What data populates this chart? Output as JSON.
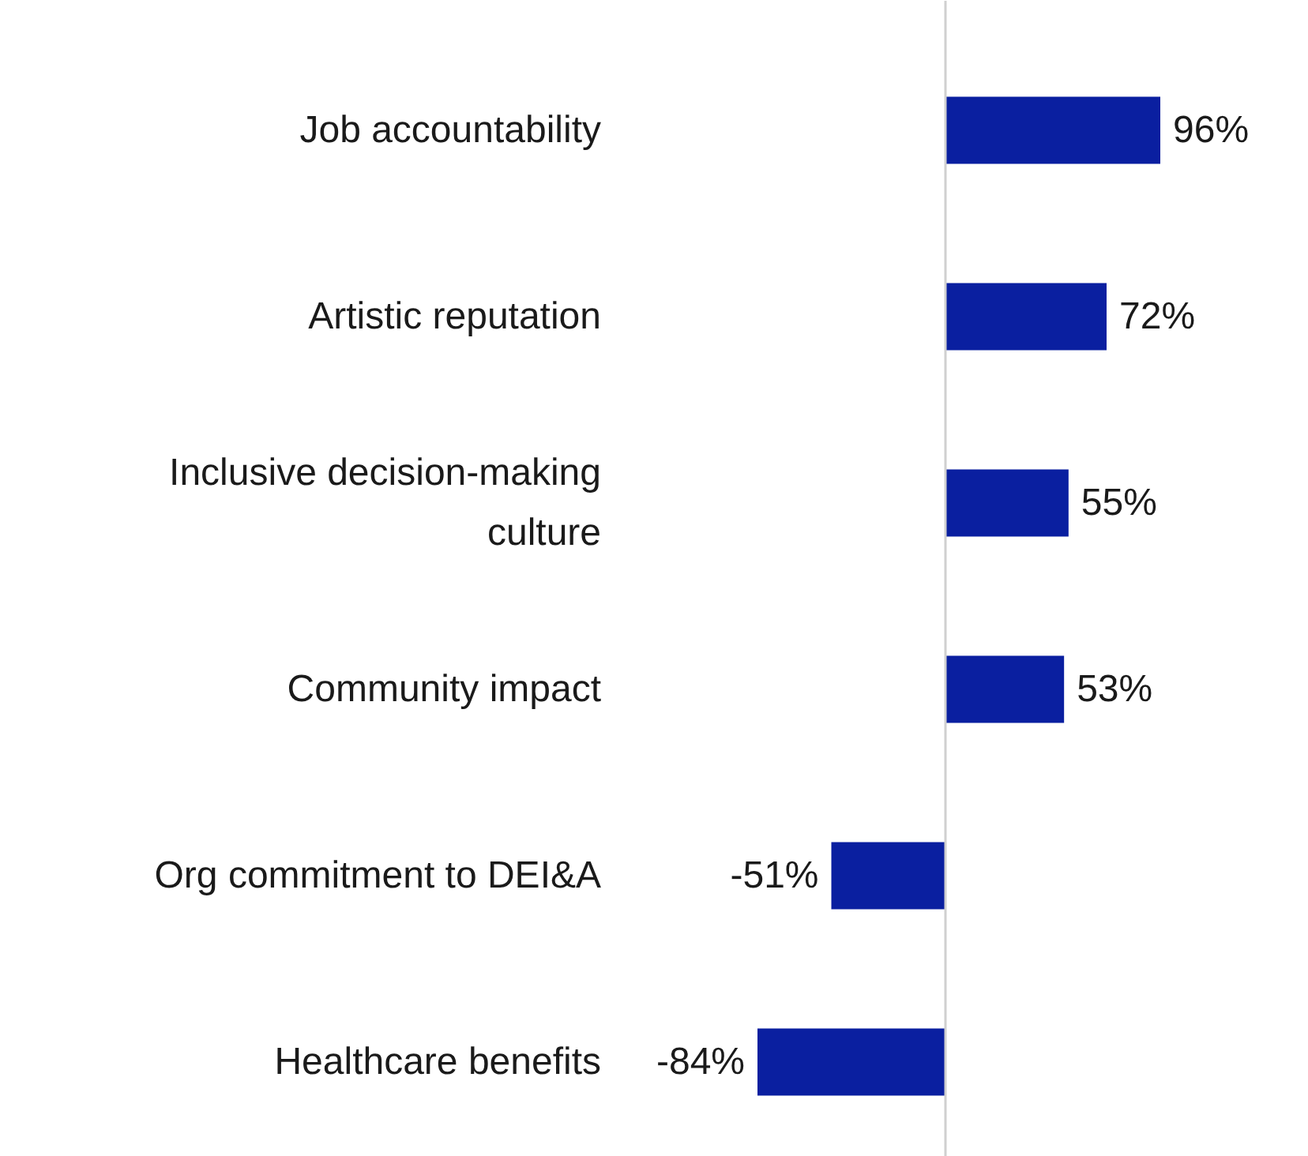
{
  "chart_data": {
    "type": "bar",
    "orientation": "horizontal",
    "data_labels": true,
    "categories": [
      "Job accountability",
      "Artistic reputation",
      "Inclusive decision-making culture",
      "Community impact",
      "Org commitment to DEI&A",
      "Healthcare benefits"
    ],
    "values": [
      96,
      72,
      55,
      53,
      -51,
      -84
    ],
    "value_labels": [
      "96%",
      "72%",
      "55%",
      "53%",
      "-51%",
      "-84%"
    ],
    "color": "#0a1fa0",
    "grid": false
  }
}
